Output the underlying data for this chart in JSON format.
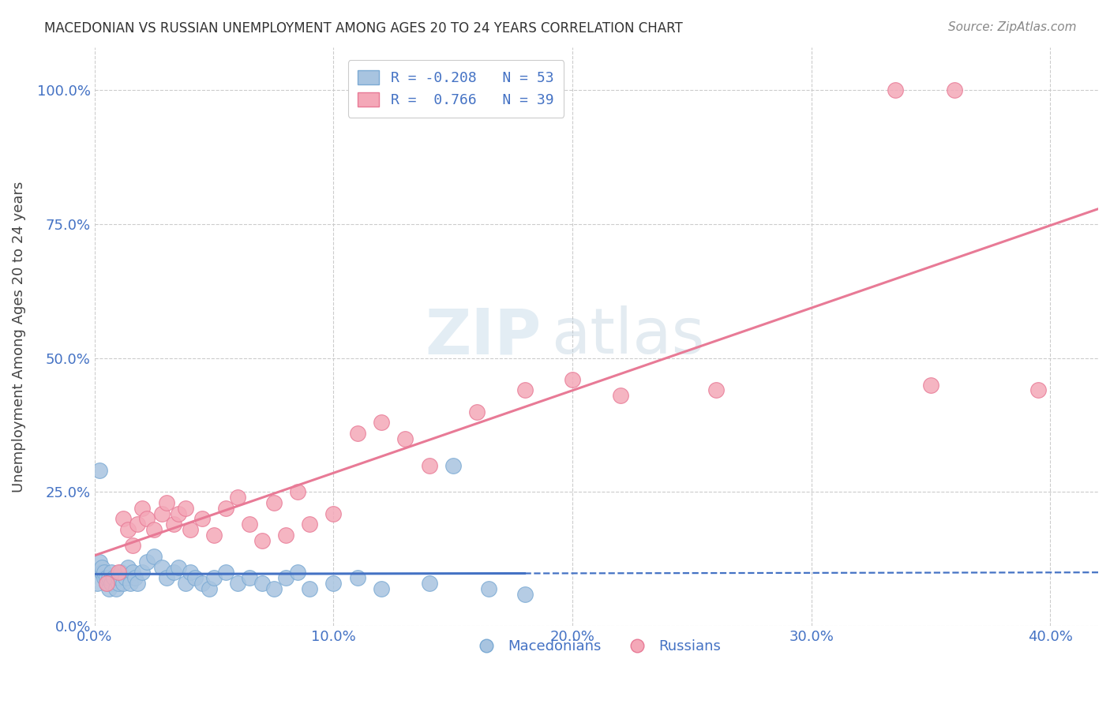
{
  "title": "MACEDONIAN VS RUSSIAN UNEMPLOYMENT AMONG AGES 20 TO 24 YEARS CORRELATION CHART",
  "source": "Source: ZipAtlas.com",
  "ylabel": "Unemployment Among Ages 20 to 24 years",
  "xlabel_ticks": [
    "0.0%",
    "10.0%",
    "20.0%",
    "30.0%",
    "40.0%"
  ],
  "ylabel_ticks": [
    "0.0%",
    "25.0%",
    "50.0%",
    "75.0%",
    "100.0%"
  ],
  "xlim": [
    0.0,
    0.42
  ],
  "ylim": [
    0.0,
    1.08
  ],
  "macedonian_R": -0.208,
  "macedonian_N": 53,
  "russian_R": 0.766,
  "russian_N": 39,
  "macedonian_color": "#a8c4e0",
  "macedonian_edge": "#7baad4",
  "russian_color": "#f4a8b8",
  "russian_edge": "#e87a96",
  "macedonian_trend_color": "#4472c4",
  "russian_trend_color": "#e87a96",
  "mac_x": [
    0.001,
    0.002,
    0.003,
    0.003,
    0.004,
    0.004,
    0.005,
    0.005,
    0.006,
    0.006,
    0.007,
    0.007,
    0.008,
    0.009,
    0.01,
    0.01,
    0.011,
    0.012,
    0.013,
    0.014,
    0.015,
    0.016,
    0.017,
    0.018,
    0.02,
    0.022,
    0.025,
    0.028,
    0.03,
    0.033,
    0.035,
    0.038,
    0.04,
    0.042,
    0.045,
    0.048,
    0.05,
    0.055,
    0.06,
    0.065,
    0.07,
    0.075,
    0.08,
    0.085,
    0.09,
    0.1,
    0.11,
    0.12,
    0.14,
    0.15,
    0.165,
    0.18,
    0.002
  ],
  "mac_y": [
    0.08,
    0.12,
    0.1,
    0.11,
    0.09,
    0.1,
    0.08,
    0.09,
    0.07,
    0.09,
    0.08,
    0.1,
    0.09,
    0.07,
    0.08,
    0.09,
    0.1,
    0.08,
    0.09,
    0.11,
    0.08,
    0.1,
    0.09,
    0.08,
    0.1,
    0.12,
    0.13,
    0.11,
    0.09,
    0.1,
    0.11,
    0.08,
    0.1,
    0.09,
    0.08,
    0.07,
    0.09,
    0.1,
    0.08,
    0.09,
    0.08,
    0.07,
    0.09,
    0.1,
    0.07,
    0.08,
    0.09,
    0.07,
    0.08,
    0.3,
    0.07,
    0.06,
    0.29
  ],
  "rus_x": [
    0.005,
    0.01,
    0.012,
    0.014,
    0.016,
    0.018,
    0.02,
    0.022,
    0.025,
    0.028,
    0.03,
    0.033,
    0.035,
    0.038,
    0.04,
    0.045,
    0.05,
    0.055,
    0.06,
    0.065,
    0.07,
    0.075,
    0.08,
    0.085,
    0.09,
    0.1,
    0.11,
    0.12,
    0.14,
    0.16,
    0.18,
    0.2,
    0.22,
    0.26,
    0.335,
    0.36,
    0.35,
    0.395,
    0.13
  ],
  "rus_y": [
    0.08,
    0.1,
    0.2,
    0.18,
    0.15,
    0.19,
    0.22,
    0.2,
    0.18,
    0.21,
    0.23,
    0.19,
    0.21,
    0.22,
    0.18,
    0.2,
    0.17,
    0.22,
    0.24,
    0.19,
    0.16,
    0.23,
    0.17,
    0.25,
    0.19,
    0.21,
    0.36,
    0.38,
    0.3,
    0.4,
    0.44,
    0.46,
    0.43,
    0.44,
    1.0,
    1.0,
    0.45,
    0.44,
    0.35
  ],
  "watermark_zip": "ZIP",
  "watermark_atlas": "atlas",
  "background_color": "#ffffff",
  "grid_color": "#cccccc",
  "title_color": "#333333",
  "axis_color": "#4472c4"
}
